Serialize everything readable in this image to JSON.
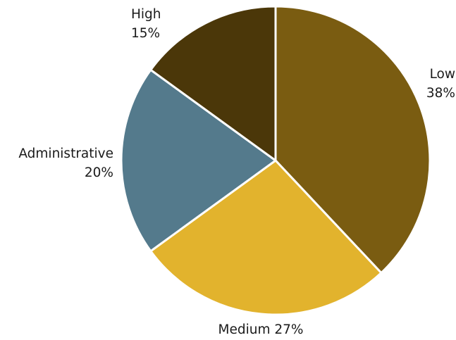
{
  "chart_data": {
    "type": "pie",
    "title": "",
    "slices": [
      {
        "label": "Low",
        "value": 38,
        "percent_text": "38%",
        "color": "#7a5c11"
      },
      {
        "label": "Medium",
        "value": 27,
        "percent_text": "27%",
        "color": "#e2b32d"
      },
      {
        "label": "Administrative",
        "value": 20,
        "percent_text": "20%",
        "color": "#547a8c"
      },
      {
        "label": "High",
        "value": 15,
        "percent_text": "15%",
        "color": "#4b3709"
      }
    ],
    "legend": "none"
  }
}
